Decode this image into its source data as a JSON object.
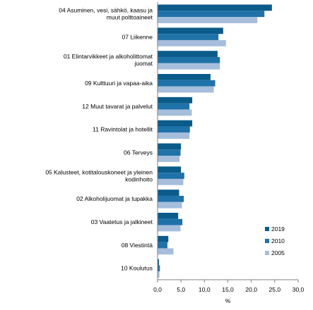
{
  "chart_data": {
    "type": "bar",
    "orientation": "horizontal",
    "categories": [
      "04 Asuminen, vesi, sähkö, kaasu ja muut polttoaineet",
      "07 Liikenne",
      "01 Elintarvikkeet ja alkoholittomat juomat",
      "09 Kulttuuri ja vapaa-aika",
      "12 Muut tavarat ja palvelut",
      "11 Ravintolat ja hotellit",
      "06 Terveys",
      "05 Kalusteet, kotitalouskoneet ja yleinen kodinhoito",
      "02 Alkoholijuomat ja tupakka",
      "03 Vaatetus ja jalkineet",
      "08 Viestintä",
      "10 Koulutus"
    ],
    "category_lines": [
      [
        "04 Asuminen, vesi, sähkö, kaasu ja",
        "muut polttoaineet"
      ],
      [
        "07 Liikenne"
      ],
      [
        "01 Elintarvikkeet ja alkoholittomat",
        "juomat"
      ],
      [
        "09 Kulttuuri ja vapaa-aika"
      ],
      [
        "12 Muut tavarat ja palvelut"
      ],
      [
        "11 Ravintolat ja hotellit"
      ],
      [
        "06 Terveys"
      ],
      [
        "05 Kalusteet, kotitalouskoneet ja yleinen",
        "kodinhoito"
      ],
      [
        "02 Alkoholijuomat ja tupakka"
      ],
      [
        "03 Vaatetus ja jalkineet"
      ],
      [
        "08 Viestintä"
      ],
      [
        "10 Koulutus"
      ]
    ],
    "series": [
      {
        "name": "2019",
        "color": "#0b5b8a",
        "values": [
          24.4,
          14.0,
          12.8,
          11.3,
          7.4,
          7.4,
          5.0,
          5.0,
          4.6,
          4.4,
          2.3,
          0.3
        ]
      },
      {
        "name": "2010",
        "color": "#1f72a8",
        "values": [
          22.8,
          13.0,
          13.3,
          12.3,
          6.8,
          6.9,
          4.9,
          5.7,
          5.6,
          5.3,
          2.1,
          0.5
        ]
      },
      {
        "name": "2005",
        "color": "#a6bedc",
        "values": [
          21.3,
          14.6,
          13.3,
          12.0,
          7.3,
          6.8,
          4.7,
          5.5,
          5.2,
          4.9,
          3.4,
          0.4
        ]
      }
    ],
    "x_ticks": [
      "0,0",
      "5,0",
      "10,0",
      "15,0",
      "20,0",
      "25,0",
      "30,0"
    ],
    "xlim": [
      0,
      30
    ],
    "xlabel": "%",
    "ylabel": "",
    "title": "",
    "grid": false,
    "legend_position": "bottom-right"
  }
}
